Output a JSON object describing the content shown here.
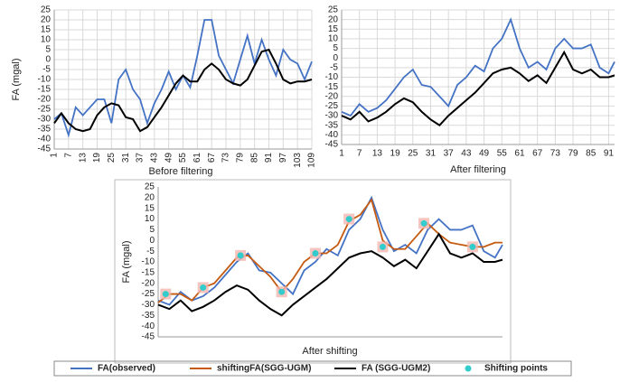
{
  "chart_data": [
    {
      "type": "line",
      "xlabel": "Before filtering",
      "ylabel": "FA (mgal)",
      "grid": true,
      "xlim": [
        1,
        109
      ],
      "xticks": [
        1,
        7,
        13,
        19,
        25,
        31,
        37,
        43,
        49,
        55,
        61,
        67,
        73,
        79,
        85,
        91,
        97,
        103,
        109
      ],
      "ylim": [
        -45,
        25
      ],
      "yticks": [
        -45,
        -40,
        -35,
        -30,
        -25,
        -20,
        -15,
        -10,
        -5,
        0,
        5,
        10,
        15,
        20,
        25
      ],
      "x": [
        1,
        4,
        7,
        10,
        13,
        16,
        19,
        22,
        25,
        28,
        31,
        34,
        37,
        40,
        43,
        46,
        49,
        52,
        55,
        58,
        61,
        64,
        67,
        70,
        73,
        76,
        79,
        82,
        85,
        88,
        91,
        94,
        97,
        100,
        103,
        106,
        109
      ],
      "series": [
        {
          "color": "#4472c4",
          "values": [
            -30,
            -27,
            -38,
            -24,
            -28,
            -24,
            -20,
            -20,
            -32,
            -10,
            -5,
            -15,
            -20,
            -32,
            -22,
            -15,
            -6,
            -15,
            -8,
            -14,
            2,
            20,
            20,
            2,
            -5,
            -12,
            0,
            12,
            -2,
            10,
            0,
            -8,
            5,
            0,
            -2,
            -10,
            -1
          ]
        },
        {
          "color": "#000000",
          "values": [
            -32,
            -27,
            -32,
            -35,
            -36,
            -35,
            -28,
            -24,
            -22,
            -23,
            -29,
            -30,
            -36,
            -34,
            -29,
            -24,
            -18,
            -12,
            -8,
            -11,
            -11,
            -5,
            -2,
            -5,
            -10,
            -12,
            -13,
            -10,
            -3,
            4,
            5,
            -2,
            -10,
            -12,
            -11,
            -11,
            -10
          ]
        }
      ]
    },
    {
      "type": "line",
      "xlabel": "After filtering",
      "grid": true,
      "xlim": [
        1,
        93
      ],
      "xticks": [
        1,
        7,
        13,
        19,
        25,
        31,
        37,
        43,
        49,
        55,
        61,
        67,
        73,
        79,
        85,
        91
      ],
      "ylim": [
        -45,
        25
      ],
      "yticks": [
        -45,
        -40,
        -35,
        -30,
        -25,
        -20,
        -15,
        -10,
        -5,
        0,
        5,
        10,
        15,
        20,
        25
      ],
      "x": [
        1,
        4,
        7,
        10,
        13,
        16,
        19,
        22,
        25,
        28,
        31,
        34,
        37,
        40,
        43,
        46,
        49,
        52,
        55,
        58,
        61,
        64,
        67,
        70,
        73,
        76,
        79,
        82,
        85,
        88,
        91,
        93
      ],
      "series": [
        {
          "color": "#4472c4",
          "values": [
            -28,
            -30,
            -24,
            -28,
            -26,
            -22,
            -16,
            -10,
            -6,
            -14,
            -15,
            -20,
            -25,
            -14,
            -10,
            -4,
            -7,
            5,
            10,
            20,
            5,
            -5,
            -2,
            -6,
            5,
            10,
            5,
            5,
            7,
            -5,
            -8,
            -2
          ]
        },
        {
          "color": "#000000",
          "values": [
            -30,
            -32,
            -28,
            -33,
            -31,
            -28,
            -24,
            -21,
            -23,
            -28,
            -32,
            -35,
            -30,
            -26,
            -22,
            -18,
            -13,
            -8,
            -6,
            -5,
            -8,
            -12,
            -9,
            -13,
            -5,
            3,
            -6,
            -8,
            -6,
            -10,
            -10,
            -9
          ]
        }
      ]
    },
    {
      "type": "line",
      "xlabel": "After shifting",
      "ylabel": "FA (mgal)",
      "grid": false,
      "xlim": [
        1,
        93
      ],
      "ylim": [
        -45,
        25
      ],
      "yticks": [
        -45,
        -40,
        -35,
        -30,
        -25,
        -20,
        -15,
        -10,
        -5,
        0,
        5,
        10,
        15,
        20,
        25
      ],
      "x": [
        1,
        4,
        7,
        10,
        13,
        16,
        19,
        22,
        25,
        28,
        31,
        34,
        37,
        40,
        43,
        46,
        49,
        52,
        55,
        58,
        61,
        64,
        67,
        70,
        73,
        76,
        79,
        82,
        85,
        88,
        91,
        93
      ],
      "series": [
        {
          "name": "FA(observed)",
          "color": "#4472c4",
          "values": [
            -28,
            -30,
            -24,
            -28,
            -26,
            -22,
            -16,
            -10,
            -6,
            -14,
            -15,
            -20,
            -25,
            -14,
            -10,
            -4,
            -7,
            5,
            10,
            20,
            5,
            -5,
            -2,
            -6,
            5,
            10,
            5,
            5,
            7,
            -5,
            -8,
            -2
          ]
        },
        {
          "name": "shiftingFA(SGG-UGM)",
          "color": "#c55a11",
          "values": [
            -29,
            -25,
            -25,
            -28,
            -22,
            -20,
            -14,
            -8,
            -7,
            -12,
            -17,
            -24,
            -18,
            -10,
            -6,
            -6,
            -2,
            9,
            12,
            19,
            0,
            -4,
            -4,
            2,
            8,
            3,
            -1,
            -2,
            -3,
            -3,
            -1,
            -1
          ]
        },
        {
          "name": "FA (SGG-UGM2)",
          "color": "#000000",
          "values": [
            -30,
            -32,
            -28,
            -33,
            -31,
            -28,
            -24,
            -21,
            -23,
            -28,
            -32,
            -35,
            -30,
            -26,
            -22,
            -18,
            -13,
            -8,
            -6,
            -5,
            -8,
            -12,
            -9,
            -13,
            -5,
            3,
            -6,
            -8,
            -6,
            -10,
            -10,
            -9
          ]
        },
        {
          "name": "Shifting points",
          "type": "scatter",
          "color": "#33cccc",
          "x": [
            3,
            13,
            23,
            34,
            43,
            52,
            61,
            72,
            85
          ],
          "values": [
            -25,
            -22,
            -7,
            -24,
            -6,
            10,
            -3,
            8,
            -3
          ]
        }
      ]
    }
  ]
}
